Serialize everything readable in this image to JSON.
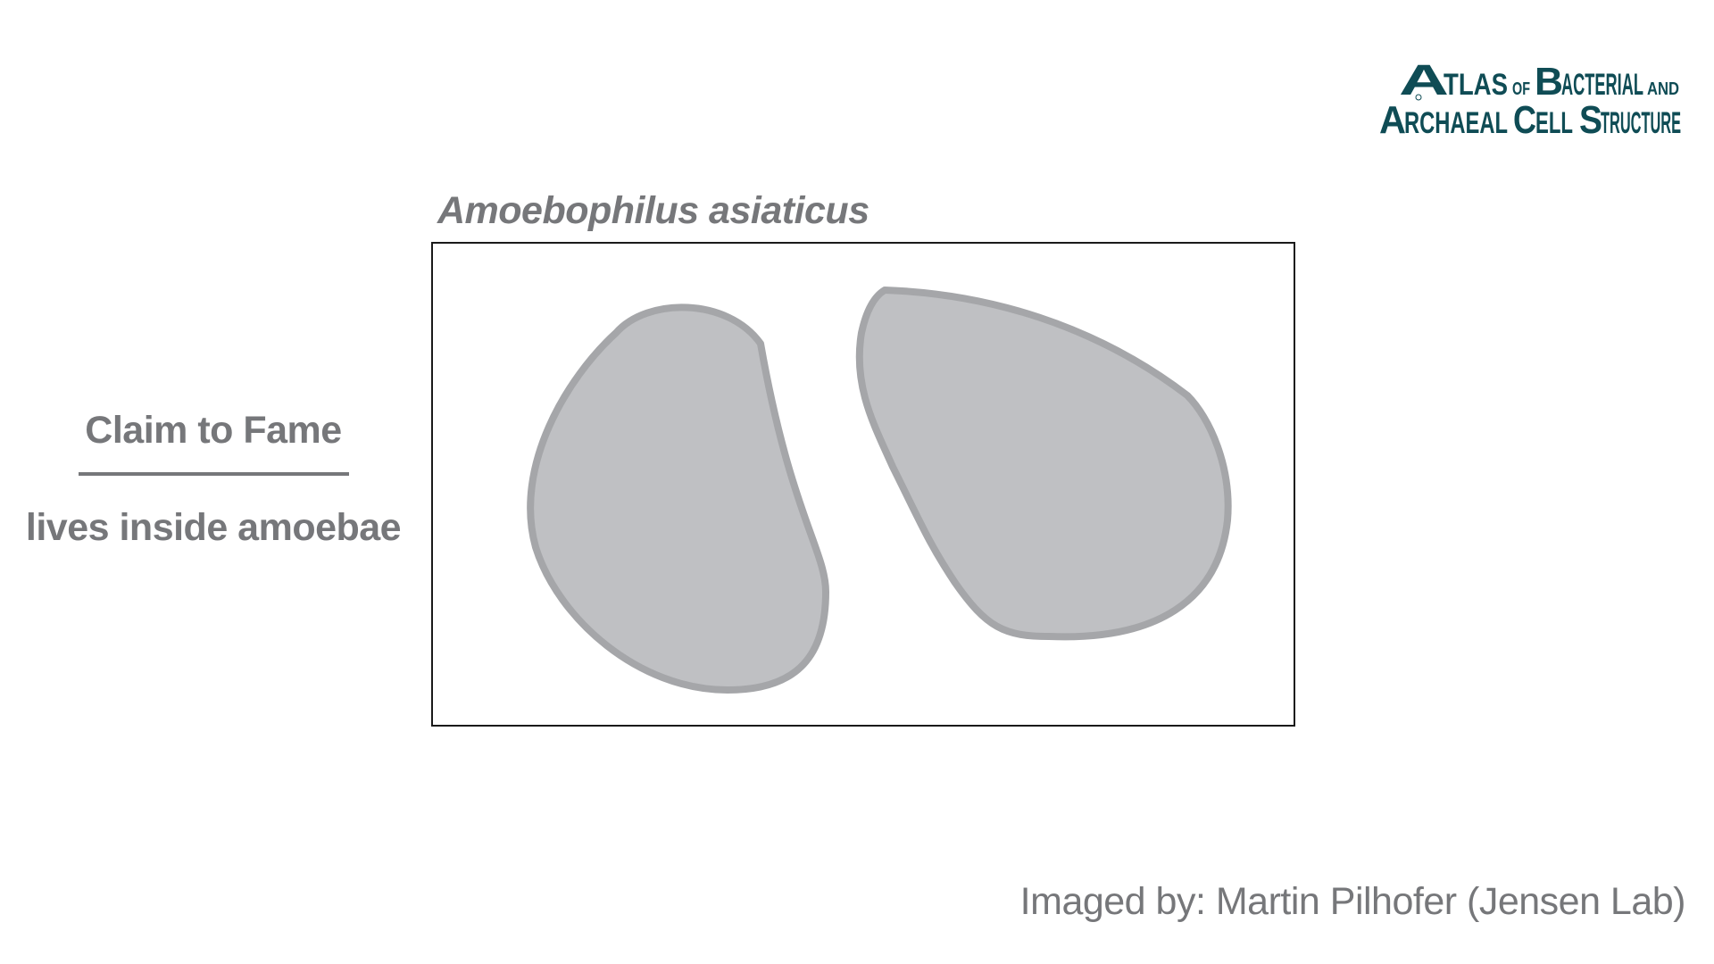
{
  "logo": {
    "line1": "ATLAS OF BACTERIAL AND",
    "line2": "ARCHAEAL CELL STRUCTURE",
    "color": "#0f4c55"
  },
  "species_name": "Amoebophilus asiaticus",
  "claim": {
    "heading": "Claim to Fame",
    "text": "lives inside amoebae"
  },
  "credit": "Imaged by: Martin Pilhofer (Jensen Lab)",
  "colors": {
    "text_gray": "#76777a",
    "cell_fill": "#bfc0c3",
    "cell_outline": "#a5a6a9",
    "frame_border": "#1a1a1a"
  }
}
